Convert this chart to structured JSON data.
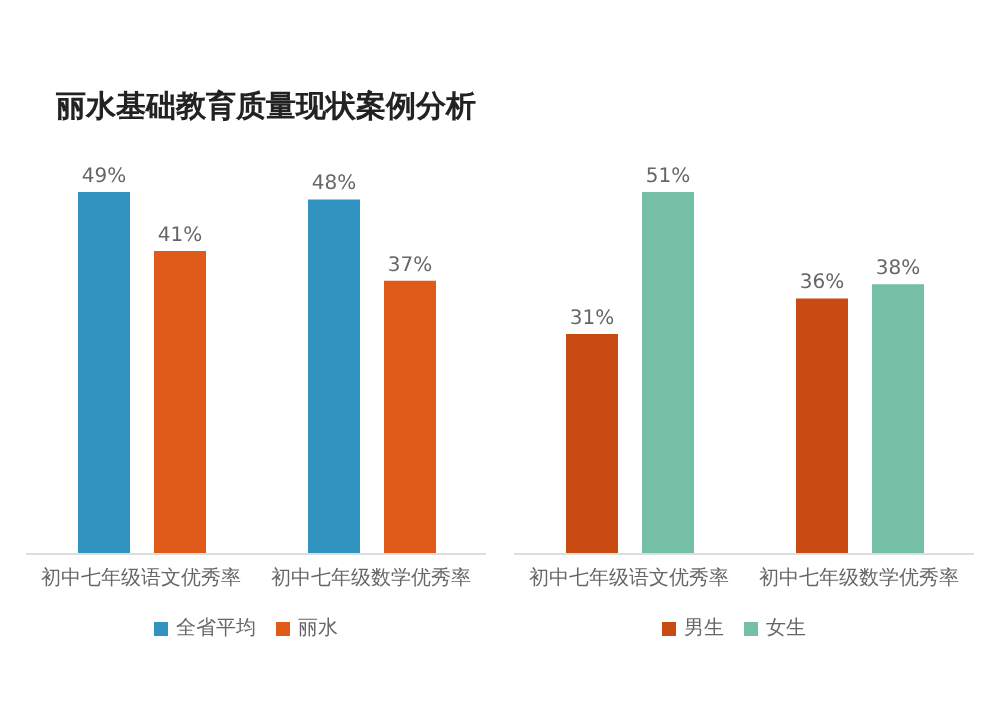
{
  "chart_data": [
    {
      "type": "bar",
      "title": "丽水基础教育质量现状案例分析",
      "categories": [
        "初中七年级语文优秀率",
        "初中七年级数学优秀率"
      ],
      "series": [
        {
          "name": "全省平均",
          "color": "#3194c0",
          "values": [
            49,
            48
          ],
          "value_labels": [
            "49%",
            "48%"
          ]
        },
        {
          "name": "丽水",
          "color": "#e05a1a",
          "values": [
            41,
            37
          ],
          "value_labels": [
            "41%",
            "37%"
          ]
        }
      ],
      "legend": "bottom",
      "grid": false,
      "tick_labels": "x"
    },
    {
      "type": "bar",
      "categories": [
        "初中七年级语文优秀率",
        "初中七年级数学优秀率"
      ],
      "series": [
        {
          "name": "男生",
          "color": "#c84b14",
          "values": [
            31,
            36
          ],
          "value_labels": [
            "31%",
            "36%"
          ]
        },
        {
          "name": "女生",
          "color": "#74bfa6",
          "values": [
            51,
            38
          ],
          "value_labels": [
            "51%",
            "38%"
          ]
        }
      ],
      "legend": "bottom",
      "grid": false,
      "tick_labels": "x"
    }
  ]
}
